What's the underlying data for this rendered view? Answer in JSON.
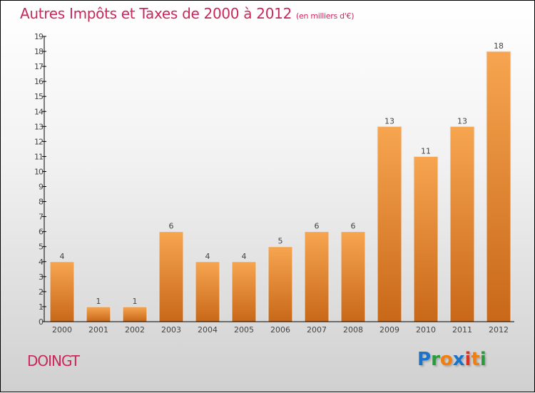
{
  "chart_data": {
    "type": "bar",
    "title": "Autres Impôts et Taxes de 2000 à 2012",
    "subtitle": "(en milliers d'€)",
    "categories": [
      "2000",
      "2001",
      "2002",
      "2003",
      "2004",
      "2005",
      "2006",
      "2007",
      "2008",
      "2009",
      "2010",
      "2011",
      "2012"
    ],
    "values": [
      4,
      1,
      1,
      6,
      4,
      4,
      5,
      6,
      6,
      13,
      11,
      13,
      18
    ],
    "xlabel": "",
    "ylabel": "",
    "ylim": [
      0,
      19
    ],
    "yticks": [
      0,
      1,
      2,
      3,
      4,
      5,
      6,
      7,
      8,
      9,
      10,
      11,
      12,
      13,
      14,
      15,
      16,
      17,
      18,
      19
    ],
    "grid": false,
    "bar_color_top": "#f7a550",
    "bar_color_bottom": "#c86818"
  },
  "footer": {
    "town": "DOINGT",
    "logo": "Proxiti",
    "logo_colors": [
      "#1a73c8",
      "#2a9a3a",
      "#f07f10",
      "#1a73c8",
      "#e03020",
      "#f07f10",
      "#2a9a3a"
    ]
  }
}
